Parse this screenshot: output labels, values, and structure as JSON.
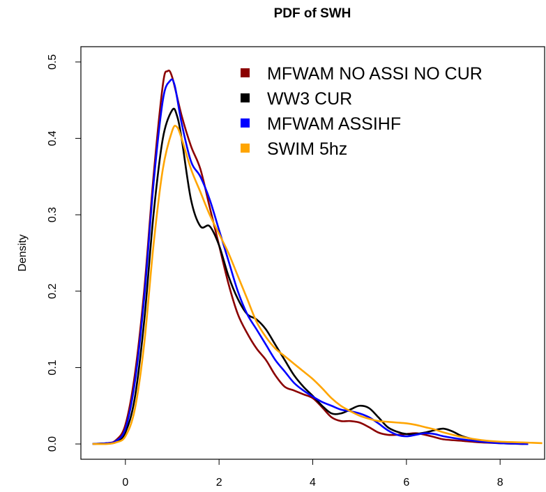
{
  "chart_data": {
    "type": "line",
    "title": "PDF of SWH",
    "xlabel": "",
    "ylabel": "Density",
    "xlim": [
      -0.95,
      8.95
    ],
    "ylim": [
      -0.02,
      0.52
    ],
    "x_ticks": [
      0,
      2,
      4,
      6,
      8
    ],
    "y_ticks": [
      0.0,
      0.1,
      0.2,
      0.3,
      0.4,
      0.5
    ],
    "x_tick_labels": [
      "0",
      "2",
      "4",
      "6",
      "8"
    ],
    "y_tick_labels": [
      "0.0",
      "0.1",
      "0.2",
      "0.3",
      "0.4",
      "0.5"
    ],
    "grid": false,
    "legend_position": "top-right",
    "series": [
      {
        "name": "MFWAM NO ASSI NO CUR",
        "color": "#8b0000",
        "points": [
          [
            -0.7,
            0.0
          ],
          [
            -0.4,
            0.001
          ],
          [
            -0.2,
            0.005
          ],
          [
            0.0,
            0.025
          ],
          [
            0.2,
            0.09
          ],
          [
            0.4,
            0.2
          ],
          [
            0.6,
            0.35
          ],
          [
            0.8,
            0.47
          ],
          [
            0.9,
            0.488
          ],
          [
            1.0,
            0.48
          ],
          [
            1.2,
            0.43
          ],
          [
            1.4,
            0.39
          ],
          [
            1.6,
            0.36
          ],
          [
            1.8,
            0.31
          ],
          [
            2.0,
            0.26
          ],
          [
            2.2,
            0.21
          ],
          [
            2.4,
            0.17
          ],
          [
            2.6,
            0.145
          ],
          [
            2.8,
            0.125
          ],
          [
            3.0,
            0.11
          ],
          [
            3.2,
            0.09
          ],
          [
            3.4,
            0.075
          ],
          [
            3.6,
            0.07
          ],
          [
            3.8,
            0.065
          ],
          [
            4.0,
            0.06
          ],
          [
            4.2,
            0.048
          ],
          [
            4.4,
            0.035
          ],
          [
            4.6,
            0.03
          ],
          [
            4.8,
            0.03
          ],
          [
            5.0,
            0.028
          ],
          [
            5.2,
            0.022
          ],
          [
            5.4,
            0.015
          ],
          [
            5.6,
            0.012
          ],
          [
            5.8,
            0.012
          ],
          [
            6.0,
            0.013
          ],
          [
            6.2,
            0.014
          ],
          [
            6.4,
            0.012
          ],
          [
            6.6,
            0.009
          ],
          [
            6.8,
            0.006
          ],
          [
            7.2,
            0.004
          ],
          [
            7.6,
            0.002
          ],
          [
            8.0,
            0.001
          ],
          [
            8.5,
            0.0
          ]
        ]
      },
      {
        "name": "WW3 CUR",
        "color": "#000000",
        "points": [
          [
            -0.7,
            0.0
          ],
          [
            -0.4,
            0.001
          ],
          [
            -0.2,
            0.003
          ],
          [
            0.0,
            0.015
          ],
          [
            0.2,
            0.06
          ],
          [
            0.4,
            0.16
          ],
          [
            0.6,
            0.3
          ],
          [
            0.8,
            0.4
          ],
          [
            1.0,
            0.437
          ],
          [
            1.1,
            0.43
          ],
          [
            1.2,
            0.4
          ],
          [
            1.4,
            0.32
          ],
          [
            1.6,
            0.285
          ],
          [
            1.8,
            0.285
          ],
          [
            2.0,
            0.26
          ],
          [
            2.2,
            0.22
          ],
          [
            2.4,
            0.19
          ],
          [
            2.6,
            0.17
          ],
          [
            2.8,
            0.163
          ],
          [
            3.0,
            0.15
          ],
          [
            3.2,
            0.13
          ],
          [
            3.4,
            0.11
          ],
          [
            3.6,
            0.09
          ],
          [
            3.8,
            0.075
          ],
          [
            4.0,
            0.063
          ],
          [
            4.2,
            0.05
          ],
          [
            4.4,
            0.04
          ],
          [
            4.6,
            0.04
          ],
          [
            4.8,
            0.045
          ],
          [
            5.0,
            0.05
          ],
          [
            5.2,
            0.047
          ],
          [
            5.4,
            0.035
          ],
          [
            5.6,
            0.022
          ],
          [
            5.8,
            0.016
          ],
          [
            6.0,
            0.013
          ],
          [
            6.2,
            0.013
          ],
          [
            6.4,
            0.015
          ],
          [
            6.6,
            0.018
          ],
          [
            6.8,
            0.02
          ],
          [
            7.0,
            0.016
          ],
          [
            7.2,
            0.01
          ],
          [
            7.6,
            0.004
          ],
          [
            8.0,
            0.001
          ],
          [
            8.6,
            0.0
          ]
        ]
      },
      {
        "name": "MFWAM ASSIHF",
        "color": "#0000ff",
        "points": [
          [
            -0.7,
            0.0
          ],
          [
            -0.4,
            0.001
          ],
          [
            -0.2,
            0.004
          ],
          [
            0.0,
            0.02
          ],
          [
            0.2,
            0.08
          ],
          [
            0.4,
            0.19
          ],
          [
            0.6,
            0.34
          ],
          [
            0.8,
            0.45
          ],
          [
            0.95,
            0.475
          ],
          [
            1.05,
            0.47
          ],
          [
            1.2,
            0.42
          ],
          [
            1.4,
            0.37
          ],
          [
            1.6,
            0.35
          ],
          [
            1.8,
            0.32
          ],
          [
            2.0,
            0.28
          ],
          [
            2.2,
            0.24
          ],
          [
            2.4,
            0.2
          ],
          [
            2.6,
            0.17
          ],
          [
            2.8,
            0.15
          ],
          [
            3.0,
            0.13
          ],
          [
            3.2,
            0.11
          ],
          [
            3.4,
            0.095
          ],
          [
            3.6,
            0.08
          ],
          [
            3.8,
            0.07
          ],
          [
            4.0,
            0.062
          ],
          [
            4.2,
            0.055
          ],
          [
            4.4,
            0.05
          ],
          [
            4.6,
            0.045
          ],
          [
            4.8,
            0.043
          ],
          [
            5.0,
            0.04
          ],
          [
            5.2,
            0.035
          ],
          [
            5.4,
            0.027
          ],
          [
            5.6,
            0.018
          ],
          [
            5.8,
            0.012
          ],
          [
            6.0,
            0.01
          ],
          [
            6.2,
            0.012
          ],
          [
            6.4,
            0.014
          ],
          [
            6.6,
            0.013
          ],
          [
            6.8,
            0.01
          ],
          [
            7.2,
            0.006
          ],
          [
            7.6,
            0.003
          ],
          [
            8.0,
            0.001
          ],
          [
            8.6,
            0.0
          ]
        ]
      },
      {
        "name": "SWIM 5hz",
        "color": "#ffa500",
        "points": [
          [
            -0.7,
            0.0
          ],
          [
            -0.4,
            0.0
          ],
          [
            -0.2,
            0.002
          ],
          [
            0.0,
            0.01
          ],
          [
            0.2,
            0.045
          ],
          [
            0.4,
            0.13
          ],
          [
            0.6,
            0.26
          ],
          [
            0.8,
            0.36
          ],
          [
            1.0,
            0.41
          ],
          [
            1.1,
            0.415
          ],
          [
            1.2,
            0.4
          ],
          [
            1.4,
            0.36
          ],
          [
            1.6,
            0.33
          ],
          [
            1.8,
            0.3
          ],
          [
            2.0,
            0.275
          ],
          [
            2.2,
            0.25
          ],
          [
            2.4,
            0.22
          ],
          [
            2.6,
            0.19
          ],
          [
            2.8,
            0.16
          ],
          [
            3.0,
            0.14
          ],
          [
            3.2,
            0.125
          ],
          [
            3.4,
            0.115
          ],
          [
            3.6,
            0.105
          ],
          [
            3.8,
            0.095
          ],
          [
            4.0,
            0.085
          ],
          [
            4.2,
            0.073
          ],
          [
            4.4,
            0.06
          ],
          [
            4.6,
            0.05
          ],
          [
            4.8,
            0.043
          ],
          [
            5.0,
            0.037
          ],
          [
            5.2,
            0.033
          ],
          [
            5.4,
            0.03
          ],
          [
            5.6,
            0.029
          ],
          [
            5.8,
            0.028
          ],
          [
            6.0,
            0.027
          ],
          [
            6.2,
            0.025
          ],
          [
            6.4,
            0.022
          ],
          [
            6.6,
            0.019
          ],
          [
            6.8,
            0.015
          ],
          [
            7.2,
            0.009
          ],
          [
            7.6,
            0.005
          ],
          [
            8.0,
            0.003
          ],
          [
            8.5,
            0.002
          ],
          [
            8.9,
            0.001
          ]
        ]
      }
    ]
  }
}
